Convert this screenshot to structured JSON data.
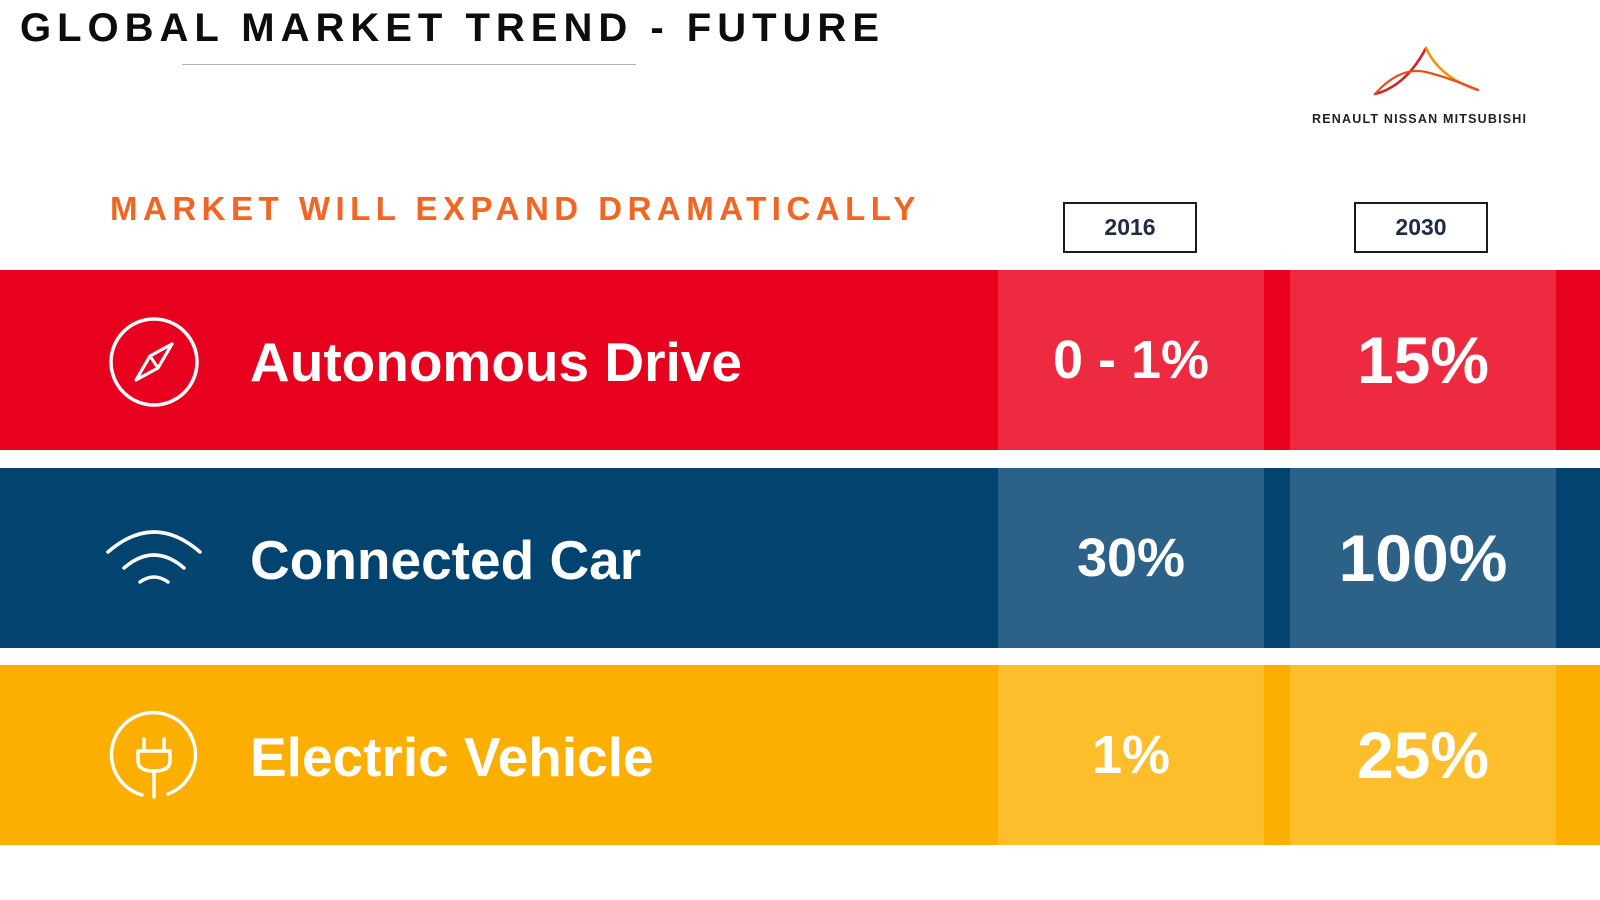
{
  "header": {
    "title": "GLOBAL MARKET TREND - FUTURE",
    "logo_text": "RENAULT NISSAN MITSUBISHI",
    "logo_icon": "alliance-arch-logo"
  },
  "subtitle": "MARKET WILL EXPAND DRAMATICALLY",
  "columns": [
    "2016",
    "2030"
  ],
  "rows": [
    {
      "label": "Autonomous Drive",
      "icon": "compass-icon",
      "value_2016": "0 - 1%",
      "value_2030": "15%",
      "colors": {
        "base": "#e8001f",
        "cell": "#ee2a40"
      }
    },
    {
      "label": "Connected Car",
      "icon": "wifi-icon",
      "value_2016": "30%",
      "value_2030": "100%",
      "colors": {
        "base": "#03436f",
        "cell": "#2d6288"
      }
    },
    {
      "label": "Electric Vehicle",
      "icon": "plug-icon",
      "value_2016": "1%",
      "value_2030": "25%",
      "colors": {
        "base": "#fdaf00",
        "cell": "#fdbe2b"
      }
    }
  ]
}
